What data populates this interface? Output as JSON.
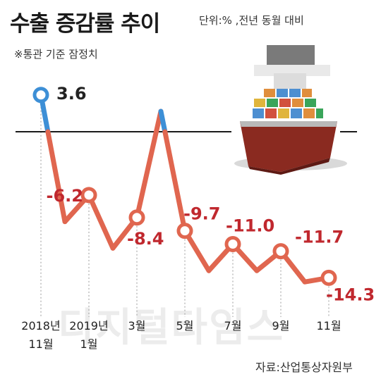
{
  "header": {
    "title": "수출 증감률 추이",
    "unit_note": "단위:% ,전년 동월 대비",
    "sub_note": "※통관 기준 잠정치"
  },
  "footer": {
    "source": "자료:산업통상자원부",
    "watermark": "디지털타임스"
  },
  "colors": {
    "positive_line": "#3d8fd6",
    "negative_line": "#e0664f",
    "negative_label": "#c0282e",
    "positive_label": "#222222",
    "zero_line": "#1a1a1a"
  },
  "chart_data": {
    "type": "line",
    "x": [
      "2018-11",
      "2018-12",
      "2019-01",
      "2019-02",
      "2019-03",
      "2019-04",
      "2019-05",
      "2019-06",
      "2019-07",
      "2019-08",
      "2019-09",
      "2019-10",
      "2019-11"
    ],
    "values": [
      3.6,
      -8.8,
      -6.2,
      -11.4,
      -8.4,
      2.0,
      -9.7,
      -13.6,
      -11.0,
      -13.6,
      -11.7,
      -14.7,
      -14.3
    ],
    "point_labels": [
      {
        "index": 0,
        "text": "3.6"
      },
      {
        "index": 2,
        "text": "-6.2"
      },
      {
        "index": 4,
        "text": "-8.4"
      },
      {
        "index": 6,
        "text": "-9.7"
      },
      {
        "index": 8,
        "text": "-11.0"
      },
      {
        "index": 10,
        "text": "-11.7"
      },
      {
        "index": 12,
        "text": "-14.3"
      }
    ],
    "tick_labels": [
      {
        "index": 0,
        "lines": [
          "2018년",
          "11월"
        ]
      },
      {
        "index": 2,
        "lines": [
          "2019년",
          "1월"
        ]
      },
      {
        "index": 4,
        "lines": [
          "3월"
        ]
      },
      {
        "index": 6,
        "lines": [
          "5월"
        ]
      },
      {
        "index": 8,
        "lines": [
          "7월"
        ]
      },
      {
        "index": 10,
        "lines": [
          "9월"
        ]
      },
      {
        "index": 12,
        "lines": [
          "11월"
        ]
      }
    ],
    "baseline": 0,
    "grid": false
  }
}
